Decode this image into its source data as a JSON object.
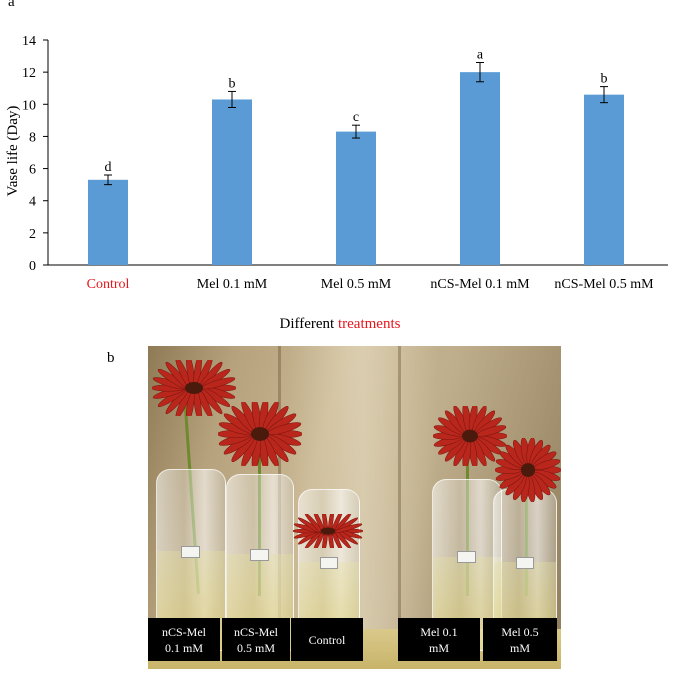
{
  "panel_a_label": "a",
  "panel_b_label": "b",
  "chart_data": {
    "type": "bar",
    "title": "",
    "xlabel_prefix": "Different",
    "xlabel_highlight": "treatments",
    "ylabel": "Vase life (Day)",
    "ylim": [
      0,
      14
    ],
    "yticks": [
      0,
      2,
      4,
      6,
      8,
      10,
      12,
      14
    ],
    "categories": [
      "Control",
      "Mel 0.1 mM",
      "Mel 0.5 mM",
      "nCS-Mel 0.1 mM",
      "nCS-Mel 0.5 mM"
    ],
    "values": [
      5.3,
      10.3,
      8.3,
      12.0,
      10.6
    ],
    "errors": [
      0.3,
      0.5,
      0.4,
      0.6,
      0.5
    ],
    "significance_letters": [
      "d",
      "b",
      "c",
      "a",
      "b"
    ],
    "bar_color": "#5b9bd5",
    "highlight_color": "#e8151b",
    "highlighted_categories": [
      "Control"
    ],
    "grid": false
  },
  "photo": {
    "captions": [
      {
        "line1": "nCS-Mel",
        "line2": "0.1 mM"
      },
      {
        "line1": "nCS-Mel",
        "line2": "0.5 mM"
      },
      {
        "line1": "Control",
        "line2": ""
      },
      {
        "line1": "Mel 0.1",
        "line2": "mM"
      },
      {
        "line1": "Mel 0.5",
        "line2": "mM"
      }
    ],
    "flower_color": "#b8261c"
  }
}
